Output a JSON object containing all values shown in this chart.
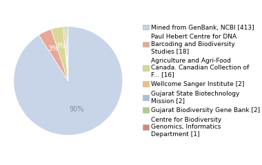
{
  "labels": [
    "Mined from GenBank, NCBI [413]",
    "Paul Hebert Centre for DNA\nBarcoding and Biodiversity\nStudies [18]",
    "Agriculture and Agri-Food\nCanada. Canadian Collection of\nF... [16]",
    "Wellcome Sanger Institute [2]",
    "Gujarat State Biotechnology\nMission [2]",
    "Gujarat Biodiversity Gene Bank [2]",
    "Centre for Biodiversity\nGenomics, Informatics\nDepartment [1]"
  ],
  "values": [
    413,
    18,
    16,
    2,
    2,
    2,
    1
  ],
  "colors": [
    "#c8d4e8",
    "#e8a898",
    "#d8d898",
    "#f0c080",
    "#a8c0d8",
    "#b0cc90",
    "#d08878"
  ],
  "startangle": 90,
  "background_color": "#ffffff",
  "pct_fontsize": 7.0,
  "legend_fontsize": 6.5
}
